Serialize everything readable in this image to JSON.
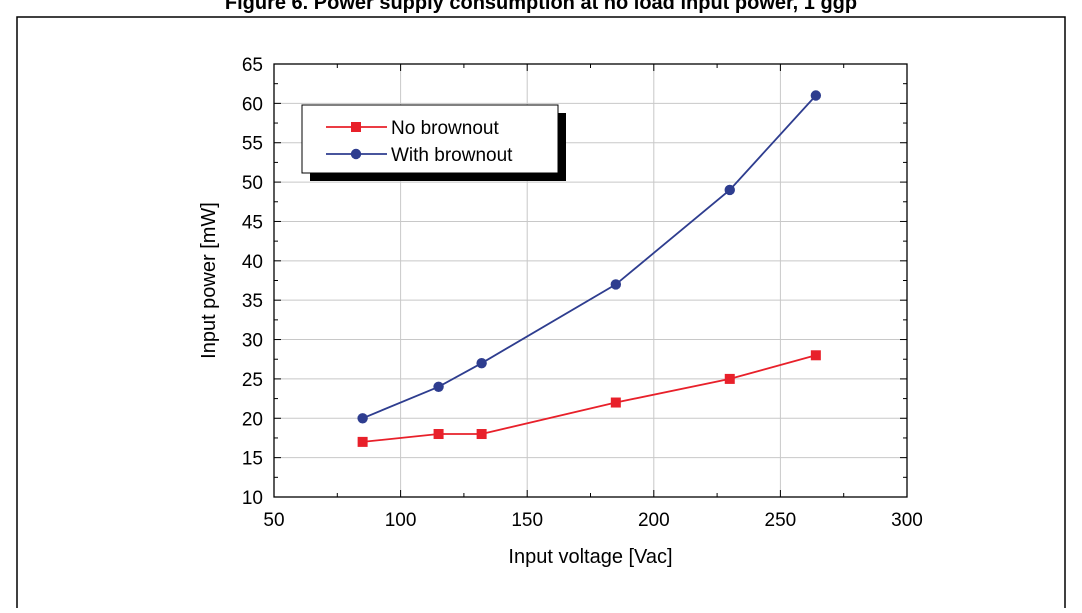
{
  "figure": {
    "title_fragment": "Figure 6. Power supply consumption at no load input power, 1 ggp"
  },
  "chart_data": {
    "type": "line",
    "xlabel": "Input voltage [Vac]",
    "ylabel": "Input power [mW]",
    "xlim": [
      50,
      300
    ],
    "ylim": [
      10,
      65
    ],
    "xticks": [
      50,
      100,
      150,
      200,
      250,
      300
    ],
    "yticks": [
      10,
      15,
      20,
      25,
      30,
      35,
      40,
      45,
      50,
      55,
      60,
      65
    ],
    "grid": true,
    "legend_position": "top-left",
    "series": [
      {
        "name": "No brownout",
        "color": "#e8202a",
        "marker": "square",
        "x": [
          85,
          115,
          132,
          185,
          230,
          264
        ],
        "y": [
          17,
          18,
          18,
          22,
          25,
          28
        ]
      },
      {
        "name": "With brownout",
        "color": "#2e3d8f",
        "marker": "circle",
        "x": [
          85,
          115,
          132,
          185,
          230,
          264
        ],
        "y": [
          20,
          24,
          27,
          37,
          49,
          61
        ]
      }
    ]
  }
}
